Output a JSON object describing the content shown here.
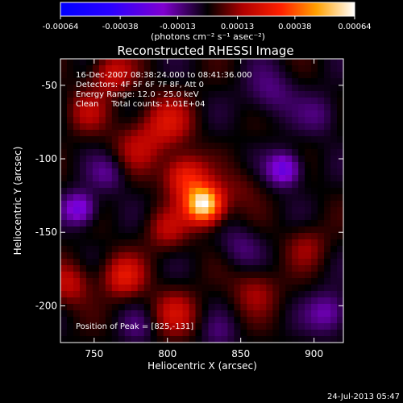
{
  "chart_data": {
    "type": "heatmap",
    "title": "Reconstructed RHESSI Image",
    "xlabel": "Heliocentric X (arcsec)",
    "ylabel": "Heliocentric Y (arcsec)",
    "xlim": [
      727,
      920
    ],
    "ylim": [
      -225,
      -32
    ],
    "x_ticks": [
      750,
      800,
      850,
      900
    ],
    "y_ticks": [
      -200,
      -150,
      -100,
      -50
    ],
    "colorbar": {
      "tick_labels": [
        "-0.00064",
        "-0.00038",
        "-0.00013",
        "0.00013",
        "0.00038",
        "0.00064"
      ],
      "ticks": [
        -0.00064,
        -0.00038,
        -0.00013,
        0.00013,
        0.00038,
        0.00064
      ],
      "range": [
        -0.00064,
        0.00064
      ],
      "units_label": "(photons cm⁻² s⁻¹ asec⁻²)"
    },
    "annotations": [
      "16-Dec-2007 08:38:24.000 to 08:41:36.000",
      "Detectors: 4F 5F 6F 7F 8F, Att 0",
      "Energy Range: 12.0 - 25.0 keV",
      "Clean     Total counts: 1.01E+04"
    ],
    "peak_text": "Position of Peak = [825,-131]",
    "peak": [
      825,
      -131
    ],
    "peak_value": 0.00064,
    "sources": [
      {
        "x": 825,
        "y": -131,
        "amp": 0.00064,
        "sigma": 9
      },
      {
        "x": 812,
        "y": -112,
        "amp": 0.0003,
        "sigma": 10
      },
      {
        "x": 800,
        "y": -75,
        "amp": 0.0002,
        "sigma": 12
      },
      {
        "x": 780,
        "y": -92,
        "amp": 0.00015,
        "sigma": 12
      },
      {
        "x": 762,
        "y": -42,
        "amp": 0.0002,
        "sigma": 10
      },
      {
        "x": 745,
        "y": -68,
        "amp": 0.00014,
        "sigma": 10
      },
      {
        "x": 770,
        "y": -180,
        "amp": 0.00024,
        "sigma": 10
      },
      {
        "x": 800,
        "y": -148,
        "amp": 0.00016,
        "sigma": 10
      },
      {
        "x": 805,
        "y": -205,
        "amp": 0.00018,
        "sigma": 11
      },
      {
        "x": 733,
        "y": -185,
        "amp": 0.00018,
        "sigma": 10
      },
      {
        "x": 860,
        "y": -190,
        "amp": 0.00014,
        "sigma": 11
      },
      {
        "x": 895,
        "y": -160,
        "amp": 0.00012,
        "sigma": 10
      },
      {
        "x": 850,
        "y": -120,
        "amp": 8e-05,
        "sigma": 10
      },
      {
        "x": 740,
        "y": -134,
        "amp": -0.00026,
        "sigma": 8
      },
      {
        "x": 880,
        "y": -107,
        "amp": -0.00028,
        "sigma": 8
      },
      {
        "x": 910,
        "y": -205,
        "amp": -0.00018,
        "sigma": 10
      },
      {
        "x": 870,
        "y": -55,
        "amp": -0.00012,
        "sigma": 12
      },
      {
        "x": 905,
        "y": -70,
        "amp": -0.0001,
        "sigma": 10
      },
      {
        "x": 760,
        "y": -110,
        "amp": -0.00012,
        "sigma": 9
      },
      {
        "x": 850,
        "y": -160,
        "amp": -0.0001,
        "sigma": 10
      },
      {
        "x": 780,
        "y": -215,
        "amp": -8e-05,
        "sigma": 9
      },
      {
        "x": 835,
        "y": -220,
        "amp": -8e-05,
        "sigma": 9
      }
    ],
    "grid": false
  },
  "footer": {
    "timestamp": "24-Jul-2013 05:47"
  },
  "colors": {
    "background": "#000000",
    "text": "#ffffff"
  }
}
